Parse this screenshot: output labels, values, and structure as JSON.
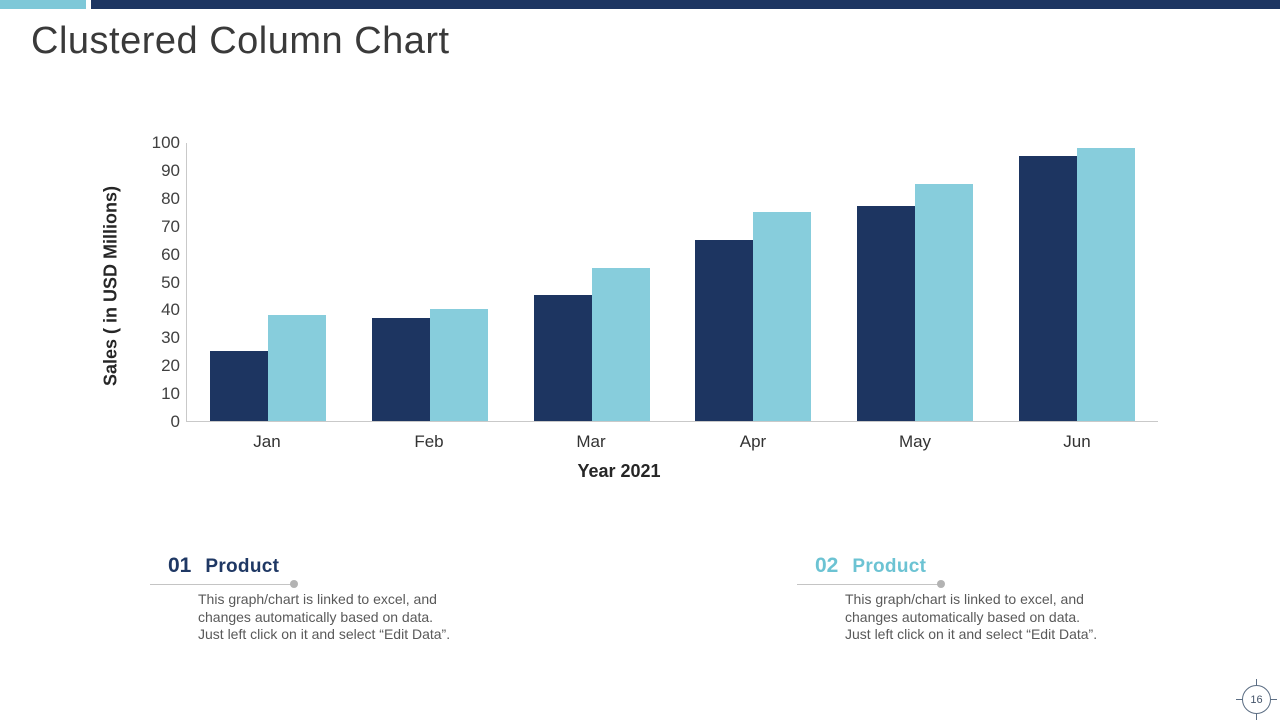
{
  "title": "Clustered Column Chart",
  "colors": {
    "accent_light_blue": "#7ec8d8",
    "accent_navy": "#1d3561",
    "series1_navy": "#1d3561",
    "series2_light_blue": "#87cddc",
    "axis_line_gray": "#c9c9c9",
    "legend1_text": "#1f3864",
    "legend2_text": "#6cc3d3",
    "body_text": "#595959"
  },
  "chart_data": {
    "type": "bar",
    "title": "",
    "xlabel": "Year 2021",
    "ylabel": "Sales ( in USD Millions)",
    "categories": [
      "Jan",
      "Feb",
      "Mar",
      "Apr",
      "May",
      "Jun"
    ],
    "series": [
      {
        "name": "Product 01",
        "color": "#1d3561",
        "values": [
          25,
          37,
          45,
          65,
          77,
          95
        ]
      },
      {
        "name": "Product 02",
        "color": "#87cddc",
        "values": [
          38,
          40,
          55,
          75,
          85,
          98
        ]
      }
    ],
    "ylim": [
      0,
      100
    ],
    "yticks": [
      0,
      10,
      20,
      30,
      40,
      50,
      60,
      70,
      80,
      90,
      100
    ],
    "grid": false,
    "legend_position": "bottom"
  },
  "legend_blocks": [
    {
      "number": "01",
      "label": "Product",
      "color": "#1f3864",
      "description": "This graph/chart is linked to excel, and\nchanges automatically based on data.\nJust left click on it and select “Edit Data”."
    },
    {
      "number": "02",
      "label": "Product",
      "color": "#6cc3d3",
      "description": "This graph/chart is linked to excel, and\nchanges automatically based on data.\nJust left click on it and select “Edit Data”."
    }
  ],
  "page_number": "16"
}
